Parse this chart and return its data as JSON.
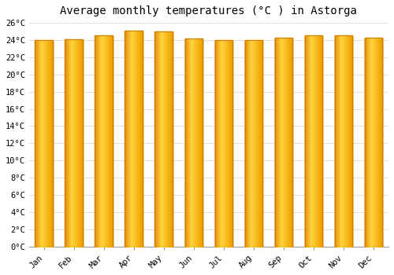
{
  "title": "Average monthly temperatures (°C ) in Astorga",
  "months": [
    "Jan",
    "Feb",
    "Mar",
    "Apr",
    "May",
    "Jun",
    "Jul",
    "Aug",
    "Sep",
    "Oct",
    "Nov",
    "Dec"
  ],
  "values": [
    24.0,
    24.1,
    24.5,
    25.1,
    25.0,
    24.2,
    24.0,
    24.0,
    24.3,
    24.5,
    24.5,
    24.3
  ],
  "bar_color_left": "#E8890A",
  "bar_color_mid": "#FFD740",
  "bar_color_right": "#F5A800",
  "bar_edge_color": "#C8820A",
  "ylim": [
    0,
    26
  ],
  "ytick_step": 2,
  "background_color": "#FFFFFF",
  "plot_bg_color": "#FFFFFF",
  "grid_color": "#E0E0E0",
  "title_fontsize": 10,
  "tick_fontsize": 7.5,
  "bar_width": 0.6
}
